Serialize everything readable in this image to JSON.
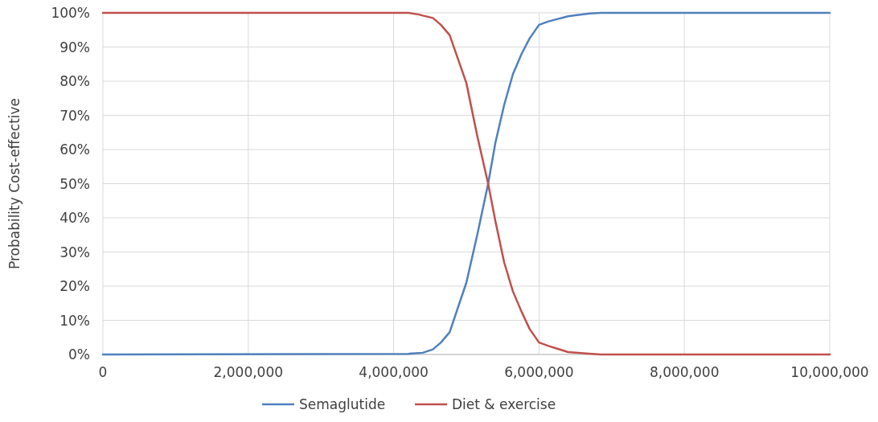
{
  "chart_data": {
    "type": "line",
    "ylabel": "Probability Cost-effective",
    "xlim": [
      0,
      10000000
    ],
    "xticks": [
      {
        "value": 0,
        "label": "0"
      },
      {
        "value": 2000000,
        "label": "2,000,000"
      },
      {
        "value": 4000000,
        "label": "4,000,000"
      },
      {
        "value": 6000000,
        "label": "6,000,000"
      },
      {
        "value": 8000000,
        "label": "8,000,000"
      },
      {
        "value": 10000000,
        "label": "10,000,000"
      }
    ],
    "ylim": [
      0,
      100
    ],
    "yticks": [
      {
        "value": 0,
        "label": "0%"
      },
      {
        "value": 10,
        "label": "10%"
      },
      {
        "value": 20,
        "label": "20%"
      },
      {
        "value": 30,
        "label": "30%"
      },
      {
        "value": 40,
        "label": "40%"
      },
      {
        "value": 50,
        "label": "50%"
      },
      {
        "value": 60,
        "label": "60%"
      },
      {
        "value": 70,
        "label": "70%"
      },
      {
        "value": 80,
        "label": "80%"
      },
      {
        "value": 90,
        "label": "90%"
      },
      {
        "value": 100,
        "label": "100%"
      }
    ],
    "grid": true,
    "legend": "bottom",
    "marker": "none",
    "line_style": "solid",
    "series": [
      {
        "name": "Semaglutide",
        "color": "#4f81bd",
        "x": [
          0,
          4200000,
          4400000,
          4540000,
          4650000,
          4770000,
          5000000,
          5150000,
          5300000,
          5400000,
          5520000,
          5640000,
          5760000,
          5870000,
          6000000,
          6130000,
          6400000,
          6500000,
          6700000,
          6850000,
          10000000
        ],
        "values": [
          0,
          0.2,
          0.5,
          1.5,
          3.5,
          6.5,
          21,
          35,
          50,
          62,
          73,
          82,
          88,
          92.5,
          96.5,
          97.5,
          99,
          99.3,
          99.8,
          100,
          100
        ]
      },
      {
        "name": "Diet & exercise",
        "color": "#c0504d",
        "x": [
          0,
          4200000,
          4350000,
          4400000,
          4540000,
          4650000,
          4770000,
          5000000,
          5150000,
          5300000,
          5400000,
          5520000,
          5640000,
          5760000,
          5870000,
          6000000,
          6130000,
          6250000,
          6400000,
          6650000,
          6850000,
          10000000
        ],
        "values": [
          100,
          100,
          99.5,
          99.2,
          98.5,
          96.5,
          93.5,
          79.5,
          64,
          50,
          39,
          27,
          18.5,
          12.5,
          7.5,
          3.5,
          2.5,
          1.7,
          0.7,
          0.3,
          0,
          0
        ]
      }
    ]
  }
}
